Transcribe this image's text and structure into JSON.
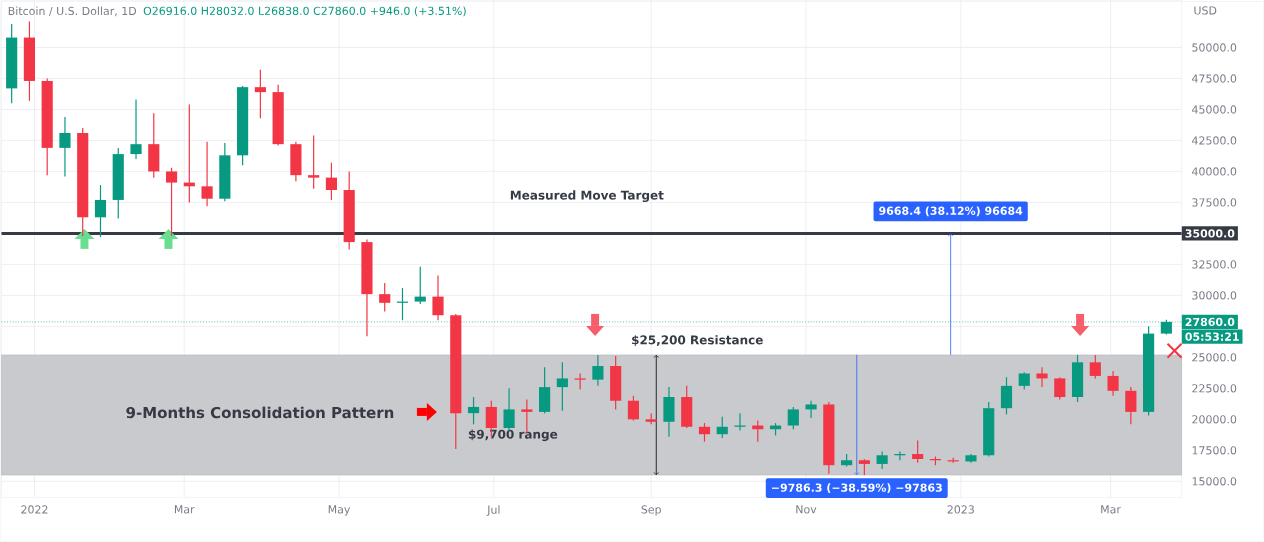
{
  "chart_data": {
    "type": "candlestick",
    "title": "Bitcoin / U.S. Dollar, 1D",
    "ylabel": "USD",
    "x": [
      "2021-12-23",
      "2021-12-30",
      "2022-01-06",
      "2022-01-13",
      "2022-01-20",
      "2022-01-27",
      "2022-02-03",
      "2022-02-10",
      "2022-02-17",
      "2022-02-24",
      "2022-03-03",
      "2022-03-10",
      "2022-03-17",
      "2022-03-24",
      "2022-03-31",
      "2022-04-07",
      "2022-04-14",
      "2022-04-21",
      "2022-04-28",
      "2022-05-05",
      "2022-05-12",
      "2022-05-19",
      "2022-05-26",
      "2022-06-02",
      "2022-06-09",
      "2022-06-16",
      "2022-06-23",
      "2022-06-30",
      "2022-07-07",
      "2022-07-14",
      "2022-07-21",
      "2022-07-28",
      "2022-08-04",
      "2022-08-11",
      "2022-08-18",
      "2022-08-25",
      "2022-09-01",
      "2022-09-08",
      "2022-09-15",
      "2022-09-22",
      "2022-09-29",
      "2022-10-06",
      "2022-10-13",
      "2022-10-20",
      "2022-10-27",
      "2022-11-03",
      "2022-11-10",
      "2022-11-17",
      "2022-11-24",
      "2022-12-01",
      "2022-12-08",
      "2022-12-15",
      "2022-12-22",
      "2022-12-29",
      "2023-01-05",
      "2023-01-12",
      "2023-01-19",
      "2023-01-26",
      "2023-02-02",
      "2023-02-09",
      "2023-02-16",
      "2023-02-23",
      "2023-03-02",
      "2023-03-09",
      "2023-03-16",
      "2023-03-23"
    ],
    "ohlc": [
      [
        46700,
        51900,
        45500,
        50800
      ],
      [
        50800,
        52100,
        45700,
        47300
      ],
      [
        47300,
        47500,
        39700,
        41900
      ],
      [
        41900,
        44400,
        39600,
        43100
      ],
      [
        43100,
        43500,
        34800,
        36300
      ],
      [
        36300,
        38900,
        34700,
        37700
      ],
      [
        37700,
        41900,
        36200,
        41400
      ],
      [
        41400,
        45800,
        41000,
        42200
      ],
      [
        42200,
        44700,
        39500,
        40000
      ],
      [
        40000,
        40300,
        34800,
        39100
      ],
      [
        39100,
        45400,
        37500,
        38800
      ],
      [
        38800,
        42400,
        37200,
        37800
      ],
      [
        37800,
        42300,
        37600,
        41300
      ],
      [
        41300,
        46900,
        40500,
        46800
      ],
      [
        46800,
        48200,
        44300,
        46400
      ],
      [
        46400,
        47000,
        42100,
        42200
      ],
      [
        42200,
        42400,
        39200,
        39700
      ],
      [
        39700,
        42900,
        38600,
        39500
      ],
      [
        39500,
        40700,
        37700,
        38500
      ],
      [
        38500,
        40000,
        33700,
        34300
      ],
      [
        34300,
        34500,
        26700,
        30100
      ],
      [
        30100,
        31000,
        28700,
        29400
      ],
      [
        29400,
        30600,
        28000,
        29500
      ],
      [
        29500,
        32300,
        29300,
        29900
      ],
      [
        29900,
        31600,
        28000,
        28400
      ],
      [
        28400,
        28500,
        17600,
        20500
      ],
      [
        20500,
        21800,
        19600,
        21000
      ],
      [
        21000,
        21500,
        18600,
        19300
      ],
      [
        19300,
        22500,
        19000,
        20800
      ],
      [
        20800,
        21600,
        18900,
        20600
      ],
      [
        20600,
        24200,
        20500,
        22600
      ],
      [
        22600,
        24600,
        20700,
        23300
      ],
      [
        23300,
        23700,
        22400,
        23200
      ],
      [
        23200,
        25200,
        22700,
        24300
      ],
      [
        24300,
        25100,
        20800,
        21500
      ],
      [
        21500,
        21900,
        19900,
        20000
      ],
      [
        20000,
        20500,
        19600,
        19800
      ],
      [
        19800,
        22600,
        18600,
        21800
      ],
      [
        21800,
        22700,
        19300,
        19400
      ],
      [
        19400,
        19700,
        18200,
        18800
      ],
      [
        18800,
        20200,
        18500,
        19400
      ],
      [
        19400,
        20500,
        19100,
        19500
      ],
      [
        19500,
        19900,
        18200,
        19200
      ],
      [
        19200,
        19700,
        18700,
        19500
      ],
      [
        19500,
        21000,
        19200,
        20800
      ],
      [
        20800,
        21500,
        20100,
        21200
      ],
      [
        21200,
        21400,
        15600,
        16300
      ],
      [
        16300,
        17200,
        16200,
        16700
      ],
      [
        16700,
        16800,
        15500,
        16400
      ],
      [
        16400,
        17400,
        16000,
        17100
      ],
      [
        17100,
        17400,
        16700,
        17200
      ],
      [
        17200,
        18300,
        16500,
        16800
      ],
      [
        16800,
        17000,
        16300,
        16700
      ],
      [
        16700,
        16900,
        16500,
        16600
      ],
      [
        16600,
        17200,
        16500,
        17100
      ],
      [
        17100,
        21400,
        17000,
        20900
      ],
      [
        20900,
        23400,
        20400,
        22700
      ],
      [
        22700,
        23800,
        22400,
        23700
      ],
      [
        23700,
        24200,
        22600,
        23300
      ],
      [
        23300,
        23400,
        21600,
        21800
      ],
      [
        21800,
        25200,
        21400,
        24600
      ],
      [
        24600,
        25200,
        23300,
        23500
      ],
      [
        23500,
        23900,
        21900,
        22300
      ],
      [
        22300,
        22600,
        19600,
        20600
      ],
      [
        20600,
        27500,
        20300,
        26916
      ],
      [
        26916,
        28032,
        26838,
        27860
      ]
    ],
    "xlim": [
      "2021-12-19",
      "2023-03-29"
    ],
    "xticks": [
      {
        "value": "2022-01-01",
        "label": "2022"
      },
      {
        "value": "2022-03-01",
        "label": "Mar"
      },
      {
        "value": "2022-05-01",
        "label": "May"
      },
      {
        "value": "2022-07-01",
        "label": "Jul"
      },
      {
        "value": "2022-09-01",
        "label": "Sep"
      },
      {
        "value": "2022-11-01",
        "label": "Nov"
      },
      {
        "value": "2023-01-01",
        "label": "2023"
      },
      {
        "value": "2023-03-01",
        "label": "Mar"
      }
    ],
    "ylim": [
      13700,
      53800
    ],
    "yticks": [
      {
        "value": 15000,
        "label": "15000.0"
      },
      {
        "value": 17500,
        "label": "17500.0"
      },
      {
        "value": 20000,
        "label": "20000.0"
      },
      {
        "value": 22500,
        "label": "22500.0"
      },
      {
        "value": 25000,
        "label": "25000.0"
      },
      {
        "value": 27500,
        "label": null
      },
      {
        "value": 30000,
        "label": "30000.0"
      },
      {
        "value": 32500,
        "label": "32500.0"
      },
      {
        "value": 35000,
        "label": null
      },
      {
        "value": 37500,
        "label": "37500.0"
      },
      {
        "value": 40000,
        "label": "40000.0"
      },
      {
        "value": 42500,
        "label": "42500.0"
      },
      {
        "value": 45000,
        "label": "45000.0"
      },
      {
        "value": 47500,
        "label": "47500.0"
      },
      {
        "value": 50000,
        "label": "50000.0"
      }
    ],
    "grid": true,
    "ref_lines": [
      {
        "axis": "y",
        "value": 35000,
        "label": "35000.0",
        "color": "#363a45",
        "line_style": "solid"
      },
      {
        "axis": "y",
        "value": 27860,
        "label": "27860.0",
        "color": "#089981",
        "line_style": "dotted"
      }
    ],
    "bands": [
      {
        "axis": "y",
        "from": 15500,
        "to": 25200,
        "color": "#c9cacd"
      }
    ],
    "annotations": [
      "Measured Move Target",
      {
        "text": "$25,200 Resistance",
        "x": "2022-09-03",
        "y": 25200
      },
      "9-Months Consolidation Pattern",
      "$9,700 range",
      {
        "text": "9668.4 (38.12%) 96684",
        "x": "2022-12-28",
        "y": 35000
      },
      {
        "text": "−9786.3 (−38.59%) −97863",
        "x": "2022-11-21",
        "y": 15500
      },
      "O26916.0 H28032.0 L26838.0 C27860.0 +946.0 (+3.51%)",
      "05:53:21"
    ]
  }
}
